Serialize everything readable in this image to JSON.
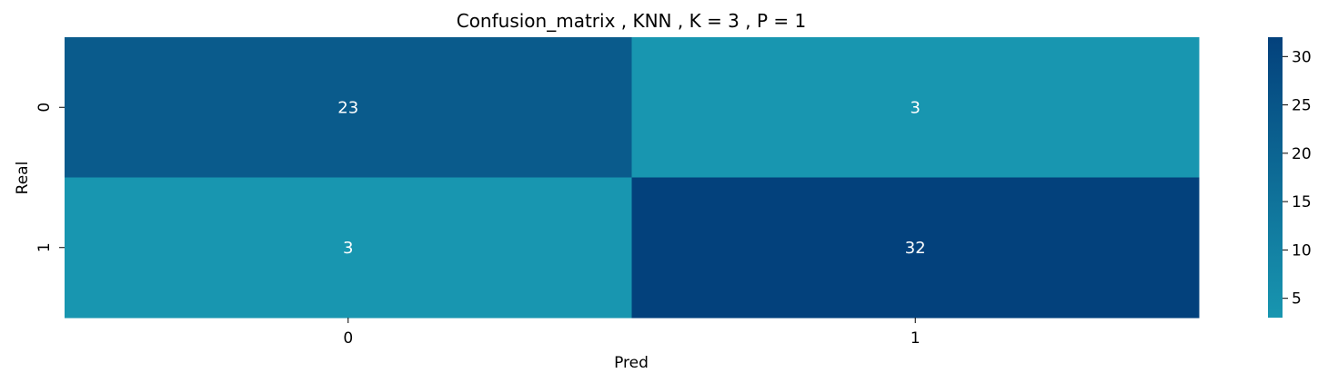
{
  "chart_data": {
    "type": "heatmap",
    "title": "Confusion_matrix , KNN , K = 3 , P = 1",
    "xlabel": "Pred",
    "ylabel": "Real",
    "x_categories": [
      "0",
      "1"
    ],
    "y_categories": [
      "0",
      "1"
    ],
    "values": [
      [
        23,
        3
      ],
      [
        3,
        32
      ]
    ],
    "colorbar": {
      "min": 3,
      "max": 32,
      "ticks": [
        5,
        10,
        15,
        20,
        25,
        30
      ],
      "tick_labels": [
        "5",
        "10",
        "15",
        "20",
        "25",
        "30"
      ],
      "low_color": "#1896b0",
      "high_color": "#03417c"
    }
  }
}
